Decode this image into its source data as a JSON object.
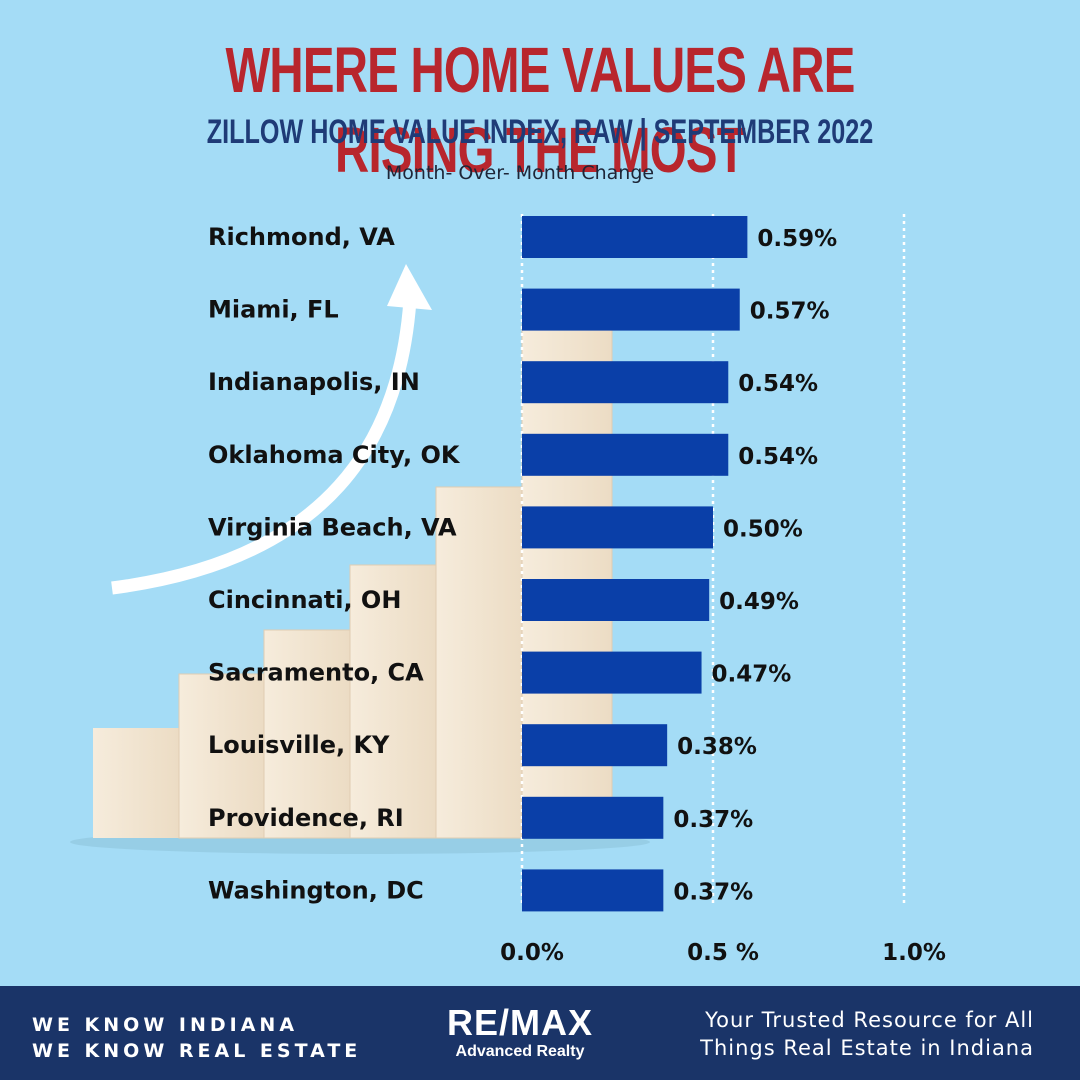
{
  "title": "WHERE HOME VALUES ARE RISING THE MOST",
  "subtitle": "ZILLOW HOME VALUE INDEX, RAW | SEPTEMBER 2022",
  "caption": "Month- Over- Month Change",
  "chart_data": {
    "type": "bar",
    "orientation": "horizontal",
    "categories": [
      "Richmond, VA",
      "Miami, FL",
      "Indianapolis, IN",
      "Oklahoma City, OK",
      "Virginia Beach, VA",
      "Cincinnati, OH",
      "Sacramento, CA",
      "Louisville, KY",
      "Providence, RI",
      "Washington, DC"
    ],
    "values": [
      0.59,
      0.57,
      0.54,
      0.54,
      0.5,
      0.49,
      0.47,
      0.38,
      0.37,
      0.37
    ],
    "value_labels": [
      "0.59%",
      "0.57%",
      "0.54%",
      "0.54%",
      "0.50%",
      "0.49%",
      "0.47%",
      "0.38%",
      "0.37%",
      "0.37%"
    ],
    "x_ticks": [
      0.0,
      0.5,
      1.0
    ],
    "x_tick_labels": [
      "0.0%",
      "0.5 %",
      "1.0%"
    ],
    "xlim": [
      0,
      1.0
    ],
    "grid": "dotted vertical lines at ticks",
    "bar_color": "#0a3fa8"
  },
  "footer": {
    "tagline_line1": "WE KNOW INDIANA",
    "tagline_line2": "WE KNOW REAL ESTATE",
    "logo_main": "RE/MAX",
    "logo_sub": "Advanced Realty",
    "resource_line1": "Your Trusted Resource for All",
    "resource_line2": "Things Real Estate in Indiana"
  },
  "colors": {
    "background": "#a4dcf6",
    "title": "#b8262d",
    "subtitle": "#1f3b77",
    "footer": "#1a3468"
  }
}
